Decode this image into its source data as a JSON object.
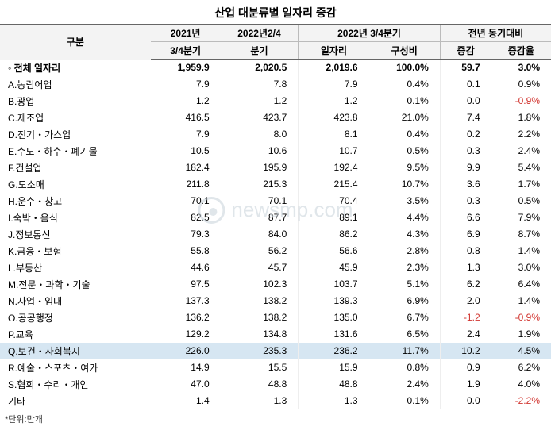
{
  "title": "산업 대분류별 일자리 증감",
  "header": {
    "category": "구분",
    "col1": {
      "line1": "2021년",
      "line2": "3/4분기"
    },
    "col2": {
      "line1": "2022년2/4",
      "line2": "분기"
    },
    "group1": {
      "title": "2022년 3/4분기",
      "sub1": "일자리",
      "sub2": "구성비"
    },
    "group2": {
      "title": "전년 동기대비",
      "sub1": "증감",
      "sub2": "증감율"
    }
  },
  "rows": [
    {
      "label": "◦ 전체 일자리",
      "c1": "1,959.9",
      "c2": "2,020.5",
      "c3": "2,019.6",
      "c4": "100.0%",
      "c5": "59.7",
      "c6": "3.0%",
      "total": true
    },
    {
      "label": "A.농림어업",
      "c1": "7.9",
      "c2": "7.8",
      "c3": "7.9",
      "c4": "0.4%",
      "c5": "0.1",
      "c6": "0.9%"
    },
    {
      "label": "B.광업",
      "c1": "1.2",
      "c2": "1.2",
      "c3": "1.2",
      "c4": "0.1%",
      "c5": "0.0",
      "c6": "-0.9%",
      "neg6": true
    },
    {
      "label": "C.제조업",
      "c1": "416.5",
      "c2": "423.7",
      "c3": "423.8",
      "c4": "21.0%",
      "c5": "7.4",
      "c6": "1.8%"
    },
    {
      "label": "D.전기・가스업",
      "c1": "7.9",
      "c2": "8.0",
      "c3": "8.1",
      "c4": "0.4%",
      "c5": "0.2",
      "c6": "2.2%"
    },
    {
      "label": "E.수도・하수・폐기물",
      "c1": "10.5",
      "c2": "10.6",
      "c3": "10.7",
      "c4": "0.5%",
      "c5": "0.3",
      "c6": "2.4%"
    },
    {
      "label": "F.건설업",
      "c1": "182.4",
      "c2": "195.9",
      "c3": "192.4",
      "c4": "9.5%",
      "c5": "9.9",
      "c6": "5.4%"
    },
    {
      "label": "G.도소매",
      "c1": "211.8",
      "c2": "215.3",
      "c3": "215.4",
      "c4": "10.7%",
      "c5": "3.6",
      "c6": "1.7%"
    },
    {
      "label": "H.운수・창고",
      "c1": "70.1",
      "c2": "70.1",
      "c3": "70.4",
      "c4": "3.5%",
      "c5": "0.3",
      "c6": "0.5%"
    },
    {
      "label": "I.숙박・음식",
      "c1": "82.5",
      "c2": "87.7",
      "c3": "89.1",
      "c4": "4.4%",
      "c5": "6.6",
      "c6": "7.9%"
    },
    {
      "label": "J.정보통신",
      "c1": "79.3",
      "c2": "84.0",
      "c3": "86.2",
      "c4": "4.3%",
      "c5": "6.9",
      "c6": "8.7%"
    },
    {
      "label": "K.금융・보험",
      "c1": "55.8",
      "c2": "56.2",
      "c3": "56.6",
      "c4": "2.8%",
      "c5": "0.8",
      "c6": "1.4%"
    },
    {
      "label": "L.부동산",
      "c1": "44.6",
      "c2": "45.7",
      "c3": "45.9",
      "c4": "2.3%",
      "c5": "1.3",
      "c6": "3.0%"
    },
    {
      "label": "M.전문・과학・기술",
      "c1": "97.5",
      "c2": "102.3",
      "c3": "103.7",
      "c4": "5.1%",
      "c5": "6.2",
      "c6": "6.4%"
    },
    {
      "label": "N.사업・임대",
      "c1": "137.3",
      "c2": "138.2",
      "c3": "139.3",
      "c4": "6.9%",
      "c5": "2.0",
      "c6": "1.4%"
    },
    {
      "label": "O.공공행정",
      "c1": "136.2",
      "c2": "138.2",
      "c3": "135.0",
      "c4": "6.7%",
      "c5": "-1.2",
      "c6": "-0.9%",
      "neg5": true,
      "neg6": true
    },
    {
      "label": "P.교육",
      "c1": "129.2",
      "c2": "134.8",
      "c3": "131.6",
      "c4": "6.5%",
      "c5": "2.4",
      "c6": "1.9%"
    },
    {
      "label": "Q.보건・사회복지",
      "c1": "226.0",
      "c2": "235.3",
      "c3": "236.2",
      "c4": "11.7%",
      "c5": "10.2",
      "c6": "4.5%",
      "highlight": true
    },
    {
      "label": "R.예술・스포츠・여가",
      "c1": "14.9",
      "c2": "15.5",
      "c3": "15.9",
      "c4": "0.8%",
      "c5": "0.9",
      "c6": "6.2%"
    },
    {
      "label": "S.협회・수리・개인",
      "c1": "47.0",
      "c2": "48.8",
      "c3": "48.8",
      "c4": "2.4%",
      "c5": "1.9",
      "c6": "4.0%"
    },
    {
      "label": "기타",
      "c1": "1.4",
      "c2": "1.3",
      "c3": "1.3",
      "c4": "0.1%",
      "c5": "0.0",
      "c6": "-2.2%",
      "neg6": true
    }
  ],
  "footnote": "*단위:만개",
  "watermark": "newsmp.com"
}
